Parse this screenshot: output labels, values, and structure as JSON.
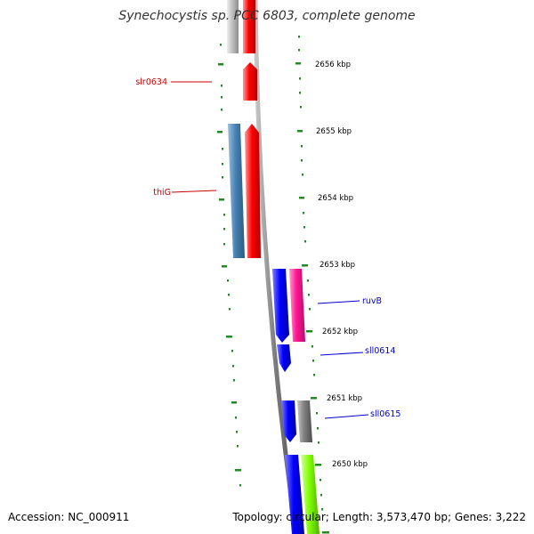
{
  "title": "Synechocystis sp. PCC 6803, complete genome",
  "kbp_labels": [
    "2656 kbp",
    "2655 kbp",
    "2654 kbp",
    "2653 kbp",
    "2652 kbp",
    "2651 kbp",
    "2650 kbp"
  ],
  "genes": [
    {
      "name": "slr0634",
      "strand": "reverse",
      "color": "#cc0000"
    },
    {
      "name": "thiG",
      "strand": "reverse",
      "color": "#cc0000"
    },
    {
      "name": "ruvB",
      "strand": "forward",
      "color": "#0000cc"
    },
    {
      "name": "sll0614",
      "strand": "forward",
      "color": "#0000cc"
    },
    {
      "name": "sll0615",
      "strand": "forward",
      "color": "#0000cc"
    }
  ],
  "colors": {
    "tick": "#228b22",
    "backbone": "#808080",
    "red": "#ff0000",
    "steelblue": "#4682b4",
    "blue": "#0000ff",
    "pink": "#ff1493",
    "gray": "#808080",
    "lightgray": "#c0c0c0",
    "lime": "#7fff00"
  },
  "footer": {
    "accession": "Accession: NC_000911",
    "summary": "Topology: circular; Length: 3,573,470 bp; Genes: 3,222"
  }
}
